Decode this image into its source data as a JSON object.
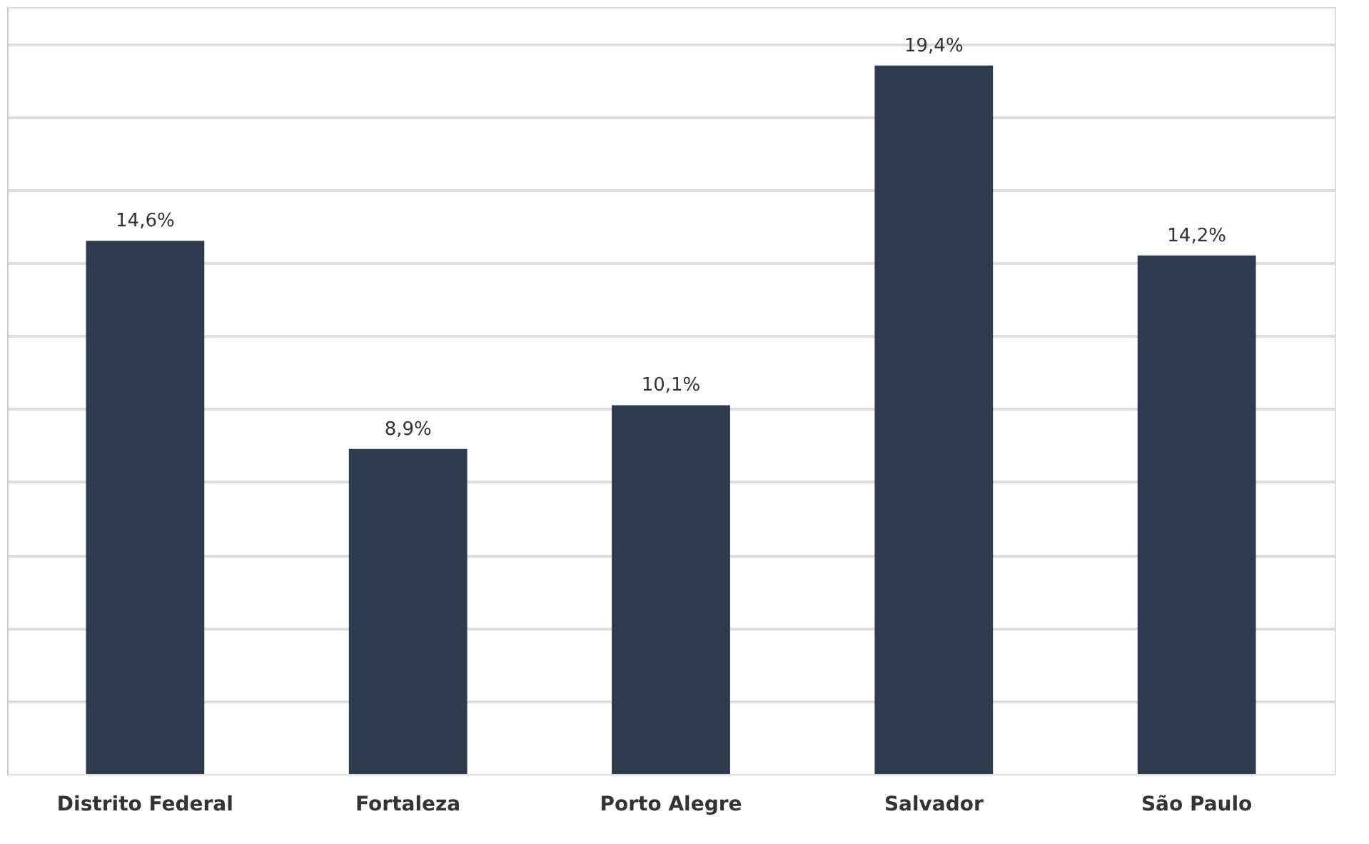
{
  "chart_data": {
    "type": "bar",
    "categories": [
      "Distrito Federal",
      "Fortaleza",
      "Porto Alegre",
      "Salvador",
      "São Paulo"
    ],
    "values": [
      14.6,
      8.9,
      10.1,
      19.4,
      14.2
    ],
    "value_labels": [
      "14,6%",
      "8,9%",
      "10,1%",
      "19,4%",
      "14,2%"
    ],
    "color": "#2e3b4e",
    "ylim": [
      0,
      21
    ],
    "yticks": [
      {
        "value": 2,
        "label": null
      },
      {
        "value": 4,
        "label": null
      },
      {
        "value": 6,
        "label": null
      },
      {
        "value": 8,
        "label": null
      },
      {
        "value": 10,
        "label": null
      },
      {
        "value": 12,
        "label": null
      },
      {
        "value": 14,
        "label": null
      },
      {
        "value": 16,
        "label": null
      },
      {
        "value": 18,
        "label": null
      },
      {
        "value": 20,
        "label": null
      }
    ],
    "grid": "y",
    "tick_labels": "x"
  }
}
